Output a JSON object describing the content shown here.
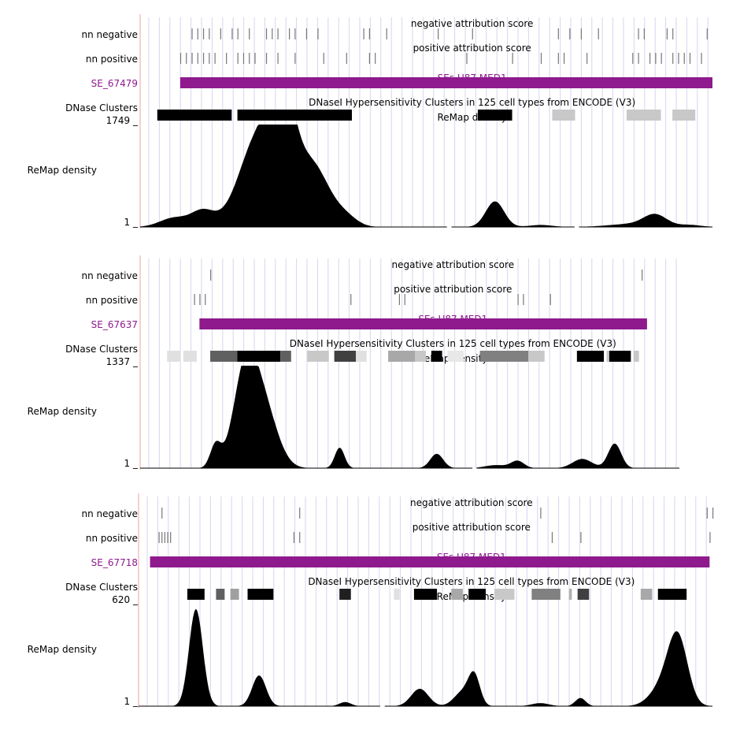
{
  "colors": {
    "se_purple": "#8e1a8e",
    "grid": "#d6d6ec",
    "divider": "#f0a0a0",
    "density": "#000000"
  },
  "panels": [
    {
      "se_id": "SE_67479",
      "row_labels": {
        "neg": "nn negative",
        "pos": "nn positive",
        "dnase": "DNase Clusters",
        "density": "ReMap density"
      },
      "track_titles": {
        "neg": "negative attribution score",
        "pos": "positive attribution score",
        "se": "SEs U87 MED1",
        "dnase": "DNaseI Hypersensitivity Clusters in 125 cell types from ENCODE (V3)",
        "density": "ReMap density"
      },
      "density_max": "1749 _",
      "density_min": "1 _",
      "gaps": [
        0.54,
        0.763
      ],
      "se_bar": [
        0.07,
        1.0
      ],
      "neg_ticks": [
        0.09,
        0.1,
        0.11,
        0.12,
        0.14,
        0.16,
        0.17,
        0.19,
        0.22,
        0.23,
        0.24,
        0.26,
        0.27,
        0.29,
        0.31,
        0.39,
        0.4,
        0.43,
        0.52,
        0.58,
        0.73,
        0.75,
        0.77,
        0.8,
        0.87,
        0.88,
        0.92,
        0.93,
        0.99
      ],
      "pos_ticks": [
        0.07,
        0.08,
        0.09,
        0.1,
        0.11,
        0.12,
        0.13,
        0.15,
        0.17,
        0.18,
        0.19,
        0.2,
        0.22,
        0.24,
        0.27,
        0.32,
        0.36,
        0.4,
        0.41,
        0.57,
        0.65,
        0.7,
        0.73,
        0.74,
        0.78,
        0.86,
        0.87,
        0.89,
        0.9,
        0.91,
        0.93,
        0.94,
        0.95,
        0.96,
        0.98
      ],
      "dnase": [
        {
          "start": 0.03,
          "end": 0.16,
          "shade": "#000000"
        },
        {
          "start": 0.17,
          "end": 0.37,
          "shade": "#000000"
        },
        {
          "start": 0.59,
          "end": 0.65,
          "shade": "#000000"
        },
        {
          "start": 0.72,
          "end": 0.76,
          "shade": "#c8c8c8"
        },
        {
          "start": 0.85,
          "end": 0.91,
          "shade": "#c8c8c8"
        },
        {
          "start": 0.93,
          "end": 0.97,
          "shade": "#c8c8c8"
        }
      ],
      "peaks": [
        {
          "pos": 0.06,
          "height": 0.09,
          "width": 0.025
        },
        {
          "pos": 0.11,
          "height": 0.15,
          "width": 0.02
        },
        {
          "pos": 0.21,
          "height": 0.92,
          "width": 0.035
        },
        {
          "pos": 0.25,
          "height": 0.9,
          "width": 0.02
        },
        {
          "pos": 0.3,
          "height": 0.6,
          "width": 0.03
        },
        {
          "pos": 0.36,
          "height": 0.08,
          "width": 0.02
        },
        {
          "pos": 0.62,
          "height": 0.25,
          "width": 0.016
        },
        {
          "pos": 0.7,
          "height": 0.02,
          "width": 0.02
        },
        {
          "pos": 0.86,
          "height": 0.03,
          "width": 0.04
        },
        {
          "pos": 0.9,
          "height": 0.11,
          "width": 0.02
        },
        {
          "pos": 0.96,
          "height": 0.02,
          "width": 0.02
        }
      ]
    },
    {
      "se_id": "SE_67637",
      "row_labels": {
        "neg": "nn negative",
        "pos": "nn positive",
        "dnase": "DNase Clusters",
        "density": "ReMap density"
      },
      "track_titles": {
        "neg": "negative attribution score",
        "pos": "positive attribution score",
        "se": "SEs U87 MED1",
        "dnase": "DNaseI Hypersensitivity Clusters in 125 cell types from ENCODE (V3)",
        "density": "ReMap density"
      },
      "density_max": "1337 _",
      "density_min": "1 _",
      "gaps": [
        0.62
      ],
      "se_bar": [
        0.11,
        0.94
      ],
      "neg_ticks": [
        0.13,
        0.93
      ],
      "pos_ticks": [
        0.1,
        0.11,
        0.12,
        0.39,
        0.48,
        0.49,
        0.7,
        0.71,
        0.76
      ],
      "dnase": [
        {
          "start": 0.05,
          "end": 0.075,
          "shade": "#e0e0e0"
        },
        {
          "start": 0.08,
          "end": 0.105,
          "shade": "#e0e0e0"
        },
        {
          "start": 0.13,
          "end": 0.18,
          "shade": "#606060"
        },
        {
          "start": 0.18,
          "end": 0.26,
          "shade": "#000000"
        },
        {
          "start": 0.26,
          "end": 0.28,
          "shade": "#606060"
        },
        {
          "start": 0.31,
          "end": 0.35,
          "shade": "#c8c8c8"
        },
        {
          "start": 0.36,
          "end": 0.4,
          "shade": "#404040"
        },
        {
          "start": 0.4,
          "end": 0.42,
          "shade": "#e0e0e0"
        },
        {
          "start": 0.46,
          "end": 0.51,
          "shade": "#a8a8a8"
        },
        {
          "start": 0.51,
          "end": 0.53,
          "shade": "#c8c8c8"
        },
        {
          "start": 0.54,
          "end": 0.56,
          "shade": "#000000"
        },
        {
          "start": 0.57,
          "end": 0.6,
          "shade": "#e8e8e8"
        },
        {
          "start": 0.63,
          "end": 0.72,
          "shade": "#808080"
        },
        {
          "start": 0.72,
          "end": 0.75,
          "shade": "#c8c8c8"
        },
        {
          "start": 0.81,
          "end": 0.86,
          "shade": "#000000"
        },
        {
          "start": 0.865,
          "end": 0.87,
          "shade": "#c8c8c8"
        },
        {
          "start": 0.87,
          "end": 0.91,
          "shade": "#000000"
        },
        {
          "start": 0.915,
          "end": 0.925,
          "shade": "#c8c8c8"
        }
      ],
      "peaks": [
        {
          "pos": 0.14,
          "height": 0.22,
          "width": 0.01
        },
        {
          "pos": 0.195,
          "height": 0.92,
          "width": 0.022
        },
        {
          "pos": 0.23,
          "height": 0.55,
          "width": 0.025
        },
        {
          "pos": 0.37,
          "height": 0.2,
          "width": 0.009
        },
        {
          "pos": 0.55,
          "height": 0.14,
          "width": 0.012
        },
        {
          "pos": 0.66,
          "height": 0.03,
          "width": 0.02
        },
        {
          "pos": 0.7,
          "height": 0.07,
          "width": 0.012
        },
        {
          "pos": 0.82,
          "height": 0.09,
          "width": 0.018
        },
        {
          "pos": 0.88,
          "height": 0.24,
          "width": 0.012
        }
      ]
    },
    {
      "se_id": "SE_67718",
      "row_labels": {
        "neg": "nn negative",
        "pos": "nn positive",
        "dnase": "DNase Clusters",
        "density": "ReMap density"
      },
      "track_titles": {
        "neg": "negative attribution score",
        "pos": "positive attribution score",
        "se": "SEs U87 MED1",
        "dnase": "DNaseI Hypersensitivity Clusters in 125 cell types from ENCODE (V3)",
        "density": "ReMap density"
      },
      "density_max": "620 _",
      "density_min": "1 _",
      "gaps": [
        0.425
      ],
      "se_bar": [
        0.02,
        0.995
      ],
      "neg_ticks": [
        0.04,
        0.28,
        0.7,
        0.99,
        1.0
      ],
      "pos_ticks": [
        0.035,
        0.04,
        0.045,
        0.05,
        0.055,
        0.27,
        0.28,
        0.72,
        0.77,
        0.995
      ],
      "dnase": [
        {
          "start": 0.085,
          "end": 0.115,
          "shade": "#000000"
        },
        {
          "start": 0.135,
          "end": 0.15,
          "shade": "#606060"
        },
        {
          "start": 0.16,
          "end": 0.175,
          "shade": "#a0a0a0"
        },
        {
          "start": 0.19,
          "end": 0.235,
          "shade": "#000000"
        },
        {
          "start": 0.35,
          "end": 0.37,
          "shade": "#202020"
        },
        {
          "start": 0.445,
          "end": 0.455,
          "shade": "#e0e0e0"
        },
        {
          "start": 0.48,
          "end": 0.52,
          "shade": "#000000"
        },
        {
          "start": 0.545,
          "end": 0.565,
          "shade": "#a8a8a8"
        },
        {
          "start": 0.575,
          "end": 0.605,
          "shade": "#000000"
        },
        {
          "start": 0.62,
          "end": 0.655,
          "shade": "#c8c8c8"
        },
        {
          "start": 0.685,
          "end": 0.735,
          "shade": "#808080"
        },
        {
          "start": 0.75,
          "end": 0.755,
          "shade": "#b0b0b0"
        },
        {
          "start": 0.765,
          "end": 0.785,
          "shade": "#404040"
        },
        {
          "start": 0.875,
          "end": 0.895,
          "shade": "#a8a8a8"
        },
        {
          "start": 0.905,
          "end": 0.955,
          "shade": "#000000"
        }
      ],
      "peaks": [
        {
          "pos": 0.1,
          "height": 0.95,
          "width": 0.012
        },
        {
          "pos": 0.21,
          "height": 0.3,
          "width": 0.012
        },
        {
          "pos": 0.36,
          "height": 0.04,
          "width": 0.01
        },
        {
          "pos": 0.49,
          "height": 0.17,
          "width": 0.015
        },
        {
          "pos": 0.565,
          "height": 0.14,
          "width": 0.015
        },
        {
          "pos": 0.585,
          "height": 0.28,
          "width": 0.01
        },
        {
          "pos": 0.7,
          "height": 0.03,
          "width": 0.015
        },
        {
          "pos": 0.77,
          "height": 0.08,
          "width": 0.009
        },
        {
          "pos": 0.94,
          "height": 0.62,
          "width": 0.017
        },
        {
          "pos": 0.915,
          "height": 0.2,
          "width": 0.022
        }
      ]
    }
  ]
}
